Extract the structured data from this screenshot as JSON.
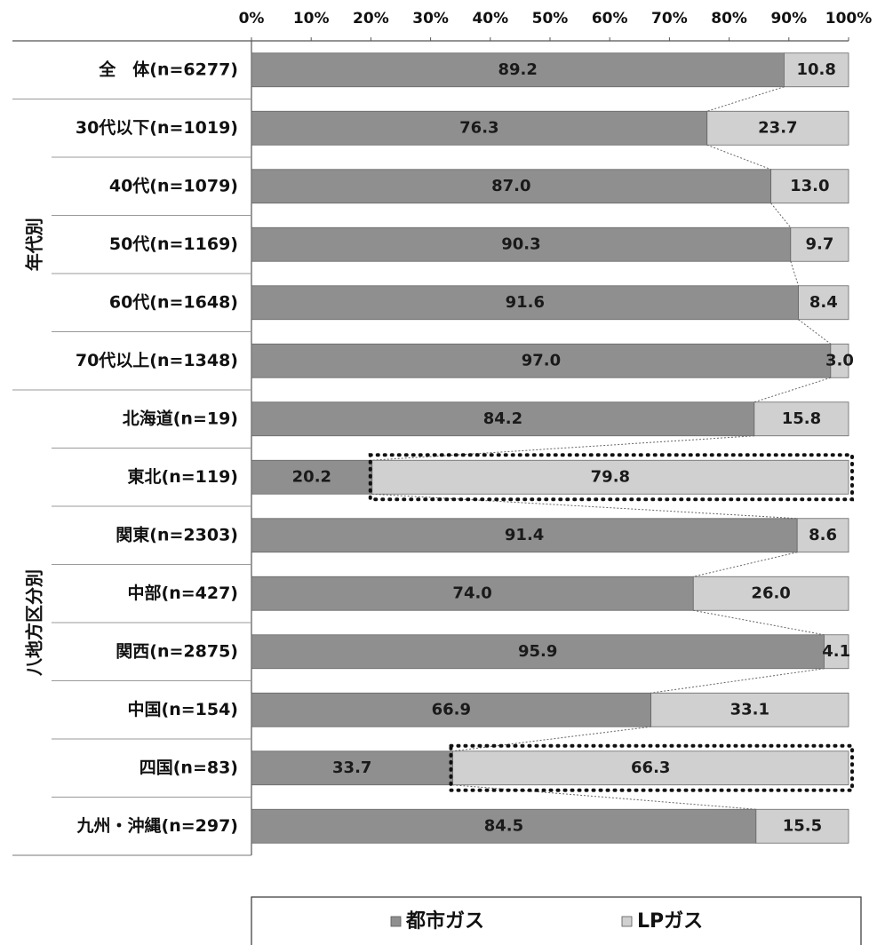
{
  "chart_data": {
    "type": "bar",
    "stacked": true,
    "orientation": "horizontal",
    "percent_axis": true,
    "xlim": [
      0,
      100
    ],
    "x_ticks": [
      "0%",
      "10%",
      "20%",
      "30%",
      "40%",
      "50%",
      "60%",
      "70%",
      "80%",
      "90%",
      "100%"
    ],
    "categories": [
      "全　体(n=6277)",
      "30代以下(n=1019)",
      "40代(n=1079)",
      "50代(n=1169)",
      "60代(n=1648)",
      "70代以上(n=1348)",
      "北海道(n=19)",
      "東北(n=119)",
      "関東(n=2303)",
      "中部(n=427)",
      "関西(n=2875)",
      "中国(n=154)",
      "四国(n=83)",
      "九州・沖縄(n=297)"
    ],
    "groups": [
      {
        "label": "年代別",
        "start": 1,
        "end": 5
      },
      {
        "label": "八地方区分別",
        "start": 6,
        "end": 13
      }
    ],
    "series": [
      {
        "name": "都市ガス",
        "color": "#8f8f8f",
        "values": [
          89.2,
          76.3,
          87.0,
          90.3,
          91.6,
          97.0,
          84.2,
          20.2,
          91.4,
          74.0,
          95.9,
          66.9,
          33.7,
          84.5
        ],
        "labels": [
          "89.2",
          "76.3",
          "87.0",
          "90.3",
          "91.6",
          "97.0",
          "84.2",
          "20.2",
          "91.4",
          "74.0",
          "95.9",
          "66.9",
          "33.7",
          "84.5"
        ]
      },
      {
        "name": "LPガス",
        "color": "#d0d0d0",
        "values": [
          10.8,
          23.7,
          13.0,
          9.7,
          8.4,
          3.0,
          15.8,
          79.8,
          8.6,
          26.0,
          4.1,
          33.1,
          66.3,
          15.5
        ],
        "labels": [
          "10.8",
          "23.7",
          "13.0",
          "9.7",
          "8.4",
          "3.0",
          "15.8",
          "79.8",
          "8.6",
          "26.0",
          "4.1",
          "33.1",
          "66.3",
          "15.5"
        ]
      }
    ],
    "highlighted_categories": [
      7,
      12
    ],
    "legend": {
      "position": "bottom",
      "items": [
        "都市ガス",
        "LPガス"
      ]
    }
  }
}
